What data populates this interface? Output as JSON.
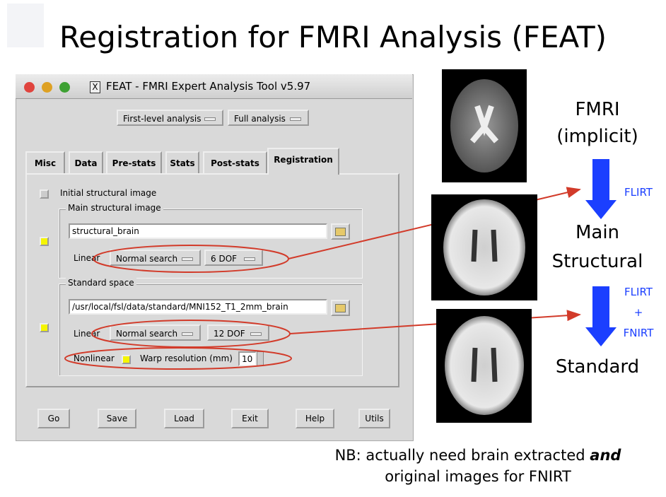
{
  "slide": {
    "title": "Registration for FMRI Analysis (FEAT)"
  },
  "window": {
    "title": "FEAT - FMRI Expert Analysis Tool v5.97",
    "analysis_level": "First-level analysis",
    "analysis_type": "Full analysis",
    "tabs": [
      "Misc",
      "Data",
      "Pre-stats",
      "Stats",
      "Post-stats",
      "Registration"
    ],
    "initial_structural": {
      "label": "Initial structural image"
    },
    "main_structural": {
      "legend": "Main structural image",
      "path": "structural_brain",
      "linear_label": "Linear",
      "search": "Normal search",
      "dof": "6 DOF"
    },
    "standard_space": {
      "legend": "Standard space",
      "path": "/usr/local/fsl/data/standard/MNI152_T1_2mm_brain",
      "linear_label": "Linear",
      "search": "Normal search",
      "dof": "12 DOF",
      "nonlinear_label": "Nonlinear",
      "warp_label": "Warp resolution (mm)",
      "warp_resolution": 10
    },
    "buttons": [
      "Go",
      "Save",
      "Load",
      "Exit",
      "Help",
      "Utils"
    ]
  },
  "pipeline": {
    "steps": [
      [
        "FMRI",
        "(implicit)"
      ],
      [
        "Main",
        "Structural"
      ],
      [
        "Standard"
      ]
    ],
    "arrows": [
      [
        "FLIRT"
      ],
      [
        "FLIRT",
        "+",
        "FNIRT"
      ]
    ]
  },
  "note": {
    "line1": [
      "NB: actually need brain extracted",
      "and"
    ],
    "line2": "original images for FNIRT"
  }
}
